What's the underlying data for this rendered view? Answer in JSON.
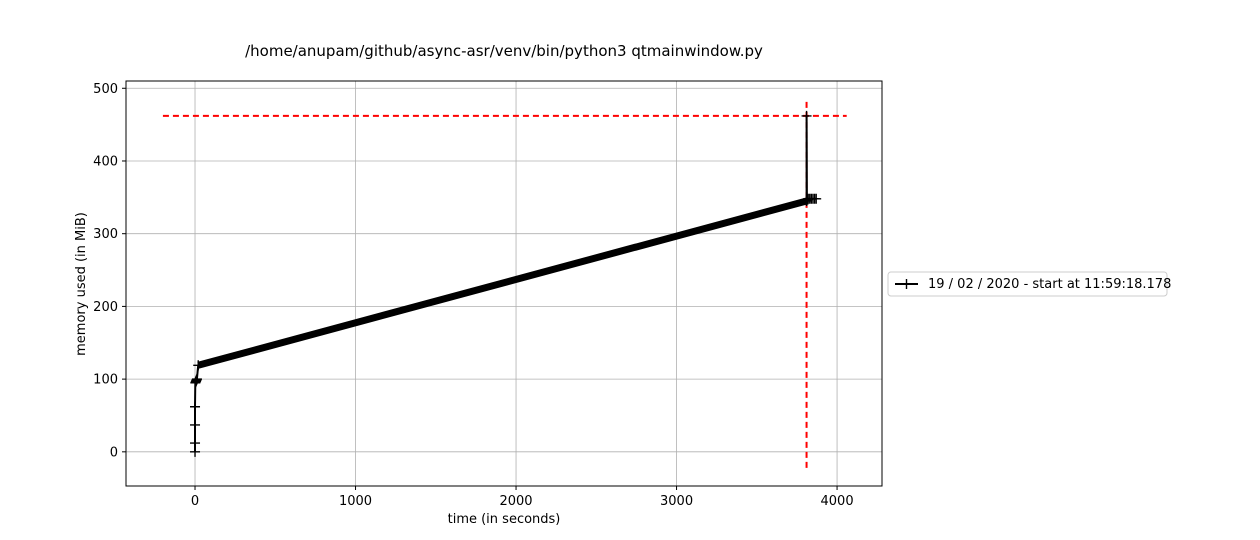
{
  "chart_data": {
    "type": "line",
    "title": "/home/anupam/github/async-asr/venv/bin/python3 qtmainwindow.py",
    "xlabel": "time (in seconds)",
    "ylabel": "memory used (in MiB)",
    "xlim": [
      -430,
      4280
    ],
    "ylim": [
      -47,
      510
    ],
    "xticks": [
      0,
      1000,
      2000,
      3000,
      4000
    ],
    "yticks": [
      0,
      100,
      200,
      300,
      400,
      500
    ],
    "xtick_labels": [
      "0",
      "1000",
      "2000",
      "3000",
      "4000"
    ],
    "ytick_labels": [
      "0",
      "100",
      "200",
      "300",
      "400",
      "500"
    ],
    "grid": true,
    "legend_position": "outside-right",
    "series": [
      {
        "name": "19 / 02 / 2020 - start at 11:59:18.178",
        "color": "#000000",
        "marker": "+",
        "x": [
          0,
          0,
          0,
          0,
          2,
          4,
          6,
          8,
          10,
          12,
          20,
          3810,
          3810,
          3812,
          3815,
          3818,
          3820,
          3830,
          3840,
          3850,
          3860,
          3870
        ],
        "y": [
          0,
          12,
          37,
          62,
          95,
          96,
          97,
          98,
          99,
          100,
          119,
          345,
          462,
          346,
          347,
          347,
          348,
          348,
          348,
          348,
          348,
          348
        ],
        "dense_segment": {
          "x_start": 20,
          "x_end": 3810,
          "y_start": 119,
          "y_end": 345
        }
      }
    ],
    "annotations": [
      {
        "type": "hline",
        "y": 462,
        "x_from": -200,
        "x_to": 4060,
        "color": "#ff0000",
        "style": "dashed"
      },
      {
        "type": "vline",
        "x": 3810,
        "y_from": -22,
        "y_to": 486,
        "color": "#ff0000",
        "style": "dashed"
      }
    ]
  }
}
